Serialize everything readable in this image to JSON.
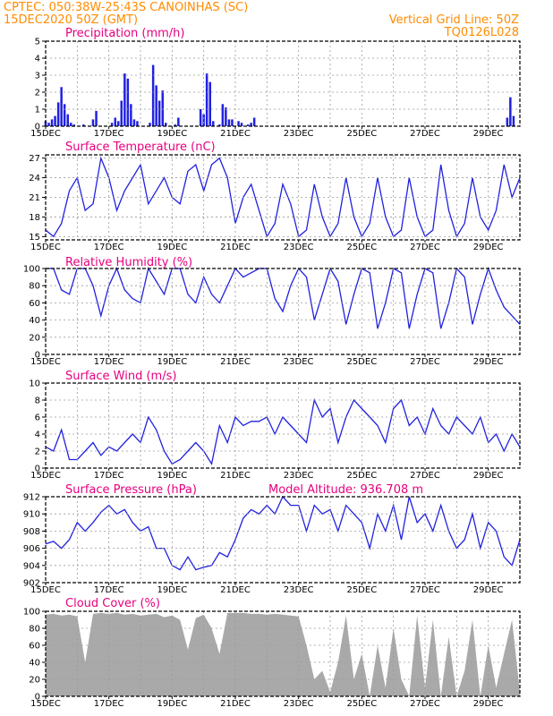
{
  "header": {
    "line1": "CPTEC:  050:38W-25:43S  CANOINHAS (SC)",
    "line2_left": "15DEC2020 50Z (GMT)",
    "line2_right": "Vertical Grid Line: 50Z",
    "code": "TQ0126L028"
  },
  "colors": {
    "series": "#2121e0",
    "cloud": "#a9a9a9",
    "title": "#e6007e",
    "header": "#ff8c00"
  },
  "chart_data": [
    {
      "type": "bar",
      "title": "Precipitation (mm/h)",
      "ylim": [
        0,
        5
      ],
      "yticks": [
        0,
        1,
        2,
        3,
        4,
        5
      ],
      "xticks": [
        "15DEC",
        "17DEC",
        "19DEC",
        "21DEC",
        "23DEC",
        "25DEC",
        "27DEC",
        "29DEC"
      ],
      "xlim_days": [
        15,
        30
      ],
      "series": [
        {
          "x": [
            15.0,
            15.1,
            15.2,
            15.3,
            15.4,
            15.5,
            15.6,
            15.7,
            15.8,
            15.9,
            16.0,
            16.1,
            16.2,
            16.3,
            16.4,
            16.5,
            16.6,
            16.7,
            16.8,
            16.9,
            17.0,
            17.1,
            17.2,
            17.3,
            17.4,
            17.5,
            17.6,
            17.7,
            17.8,
            17.9,
            18.0,
            18.1,
            18.2,
            18.3,
            18.4,
            18.5,
            18.6,
            18.7,
            18.8,
            18.9,
            19.0,
            19.1,
            19.2,
            19.3,
            19.4,
            19.5,
            19.6,
            19.7,
            19.8,
            19.9,
            20.0,
            20.1,
            20.2,
            20.3,
            20.4,
            20.5,
            20.6,
            20.7,
            20.8,
            20.9,
            21.0,
            21.1,
            21.2,
            21.3,
            21.4,
            21.5,
            21.6,
            21.7,
            21.8,
            21.9,
            22.0,
            29.6,
            29.7,
            29.8
          ],
          "values": [
            0.3,
            0.2,
            0.4,
            0.6,
            1.4,
            2.3,
            1.3,
            0.7,
            0.2,
            0.1,
            0.0,
            0.0,
            0.1,
            0.0,
            0.0,
            0.4,
            0.9,
            0.0,
            0.0,
            0.0,
            0.0,
            0.2,
            0.5,
            0.3,
            1.5,
            3.1,
            2.8,
            1.3,
            0.4,
            0.3,
            0.0,
            0.0,
            0.0,
            0.2,
            3.6,
            2.4,
            1.5,
            2.1,
            0.2,
            0.0,
            0.0,
            0.1,
            0.5,
            0.0,
            0.0,
            0.0,
            0.0,
            0.0,
            0.0,
            1.0,
            0.7,
            3.1,
            2.6,
            0.3,
            0.0,
            0.1,
            1.3,
            1.1,
            0.4,
            0.4,
            0.0,
            0.3,
            0.2,
            0.0,
            0.1,
            0.2,
            0.5,
            0.0,
            0.0,
            0.0,
            0.0,
            0.5,
            1.7,
            0.6
          ]
        }
      ]
    },
    {
      "type": "line",
      "title": "Surface Temperature (nC)",
      "ylim": [
        14.5,
        27.5
      ],
      "yticks": [
        15,
        18,
        21,
        24,
        27
      ],
      "xticks": [
        "15DEC",
        "17DEC",
        "19DEC",
        "21DEC",
        "23DEC",
        "25DEC",
        "27DEC",
        "29DEC"
      ],
      "xlim_days": [
        15,
        30
      ],
      "series": [
        {
          "x": [
            15.0,
            15.25,
            15.5,
            15.75,
            16.0,
            16.25,
            16.5,
            16.75,
            17.0,
            17.25,
            17.5,
            17.75,
            18.0,
            18.25,
            18.5,
            18.75,
            19.0,
            19.25,
            19.5,
            19.75,
            20.0,
            20.25,
            20.5,
            20.75,
            21.0,
            21.25,
            21.5,
            21.75,
            22.0,
            22.25,
            22.5,
            22.75,
            23.0,
            23.25,
            23.5,
            23.75,
            24.0,
            24.25,
            24.5,
            24.75,
            25.0,
            25.25,
            25.5,
            25.75,
            26.0,
            26.25,
            26.5,
            26.75,
            27.0,
            27.25,
            27.5,
            27.75,
            28.0,
            28.25,
            28.5,
            28.75,
            29.0,
            29.25,
            29.5,
            29.75,
            30.0
          ],
          "values": [
            16,
            15,
            17,
            22,
            24,
            19,
            20,
            27,
            24,
            19,
            22,
            24,
            26,
            20,
            22,
            24,
            21,
            20,
            25,
            26,
            22,
            26,
            27,
            24,
            17,
            21,
            23,
            19,
            15,
            17,
            23,
            20,
            15,
            16,
            23,
            18,
            15,
            17,
            24,
            18,
            15,
            17,
            24,
            18,
            15,
            16,
            24,
            18,
            15,
            16,
            26,
            19,
            15,
            17,
            24,
            18,
            16,
            19,
            26,
            21,
            24
          ]
        }
      ]
    },
    {
      "type": "line",
      "title": "Relative Humidity (%)",
      "ylim": [
        0,
        100
      ],
      "yticks": [
        0,
        20,
        40,
        60,
        80,
        100
      ],
      "xticks": [
        "15DEC",
        "17DEC",
        "19DEC",
        "21DEC",
        "23DEC",
        "25DEC",
        "27DEC",
        "29DEC"
      ],
      "xlim_days": [
        15,
        30
      ],
      "series": [
        {
          "x": [
            15.0,
            15.25,
            15.5,
            15.75,
            16.0,
            16.25,
            16.5,
            16.75,
            17.0,
            17.25,
            17.5,
            17.75,
            18.0,
            18.25,
            18.5,
            18.75,
            19.0,
            19.25,
            19.5,
            19.75,
            20.0,
            20.25,
            20.5,
            20.75,
            21.0,
            21.25,
            21.5,
            21.75,
            22.0,
            22.25,
            22.5,
            22.75,
            23.0,
            23.25,
            23.5,
            23.75,
            24.0,
            24.25,
            24.5,
            24.75,
            25.0,
            25.25,
            25.5,
            25.75,
            26.0,
            26.25,
            26.5,
            26.75,
            27.0,
            27.25,
            27.5,
            27.75,
            28.0,
            28.25,
            28.5,
            28.75,
            29.0,
            29.25,
            29.5,
            29.75,
            30.0
          ],
          "values": [
            100,
            100,
            75,
            70,
            100,
            100,
            80,
            45,
            80,
            100,
            75,
            65,
            60,
            100,
            85,
            70,
            100,
            100,
            70,
            60,
            90,
            70,
            60,
            80,
            100,
            90,
            95,
            100,
            100,
            65,
            50,
            80,
            100,
            90,
            40,
            70,
            100,
            85,
            35,
            70,
            100,
            95,
            30,
            60,
            100,
            95,
            30,
            70,
            100,
            95,
            30,
            60,
            100,
            90,
            35,
            70,
            100,
            75,
            55,
            45,
            35
          ]
        }
      ]
    },
    {
      "type": "line",
      "title": "Surface Wind (m/s)",
      "ylim": [
        0,
        10
      ],
      "yticks": [
        0,
        2,
        4,
        6,
        8,
        10
      ],
      "xticks": [
        "15DEC",
        "17DEC",
        "19DEC",
        "21DEC",
        "23DEC",
        "25DEC",
        "27DEC",
        "29DEC"
      ],
      "xlim_days": [
        15,
        30
      ],
      "series": [
        {
          "x": [
            15.0,
            15.25,
            15.5,
            15.75,
            16.0,
            16.25,
            16.5,
            16.75,
            17.0,
            17.25,
            17.5,
            17.75,
            18.0,
            18.25,
            18.5,
            18.75,
            19.0,
            19.25,
            19.5,
            19.75,
            20.0,
            20.25,
            20.5,
            20.75,
            21.0,
            21.25,
            21.5,
            21.75,
            22.0,
            22.25,
            22.5,
            22.75,
            23.0,
            23.25,
            23.5,
            23.75,
            24.0,
            24.25,
            24.5,
            24.75,
            25.0,
            25.25,
            25.5,
            25.75,
            26.0,
            26.25,
            26.5,
            26.75,
            27.0,
            27.25,
            27.5,
            27.75,
            28.0,
            28.25,
            28.5,
            28.75,
            29.0,
            29.25,
            29.5,
            29.75,
            30.0
          ],
          "values": [
            2.5,
            2,
            4.5,
            1,
            1,
            2,
            3,
            1.5,
            2.5,
            2,
            3,
            4,
            3,
            6,
            4.5,
            2,
            0.5,
            1,
            2,
            3,
            2,
            0.5,
            5,
            3,
            6,
            5,
            5.5,
            5.5,
            6,
            4,
            6,
            5,
            4,
            3,
            8,
            6,
            7,
            3,
            6,
            8,
            7,
            6,
            5,
            3,
            7,
            8,
            5,
            6,
            4,
            7,
            5,
            4,
            6,
            5,
            4,
            6,
            3,
            4,
            2,
            4,
            2.5
          ]
        }
      ]
    },
    {
      "type": "line",
      "title": "Surface Pressure (hPa)",
      "annotation": "Model Altitude: 936.708  m",
      "ylim": [
        902,
        912
      ],
      "yticks": [
        902,
        904,
        906,
        908,
        910,
        912
      ],
      "xticks": [
        "15DEC",
        "17DEC",
        "19DEC",
        "21DEC",
        "23DEC",
        "25DEC",
        "27DEC",
        "29DEC"
      ],
      "xlim_days": [
        15,
        30
      ],
      "series": [
        {
          "x": [
            15.0,
            15.25,
            15.5,
            15.75,
            16.0,
            16.25,
            16.5,
            16.75,
            17.0,
            17.25,
            17.5,
            17.75,
            18.0,
            18.25,
            18.5,
            18.75,
            19.0,
            19.25,
            19.5,
            19.75,
            20.0,
            20.25,
            20.5,
            20.75,
            21.0,
            21.25,
            21.5,
            21.75,
            22.0,
            22.25,
            22.5,
            22.75,
            23.0,
            23.25,
            23.5,
            23.75,
            24.0,
            24.25,
            24.5,
            24.75,
            25.0,
            25.25,
            25.5,
            25.75,
            26.0,
            26.25,
            26.5,
            26.75,
            27.0,
            27.25,
            27.5,
            27.75,
            28.0,
            28.25,
            28.5,
            28.75,
            29.0,
            29.25,
            29.5,
            29.75,
            30.0
          ],
          "values": [
            906.5,
            906.8,
            906,
            907,
            909,
            908,
            909,
            910.2,
            911,
            910,
            910.5,
            909,
            908,
            908.5,
            906,
            906,
            904,
            903.5,
            905,
            903.5,
            903.8,
            904,
            905.5,
            905,
            907,
            909.5,
            910.5,
            910,
            911,
            910,
            912,
            911,
            911,
            908,
            911,
            910,
            910.5,
            908,
            911,
            910,
            909,
            906,
            910,
            908,
            911,
            907,
            912,
            909,
            910,
            908,
            911,
            908,
            906,
            907,
            910,
            906,
            909,
            908,
            905,
            904,
            907
          ]
        }
      ]
    },
    {
      "type": "area",
      "title": "Cloud Cover (%)",
      "ylim": [
        0,
        100
      ],
      "yticks": [
        0,
        20,
        40,
        60,
        80,
        100
      ],
      "xticks": [
        "15DEC",
        "17DEC",
        "19DEC",
        "21DEC",
        "23DEC",
        "25DEC",
        "27DEC",
        "29DEC"
      ],
      "xlim_days": [
        15,
        30
      ],
      "series": [
        {
          "x": [
            15.0,
            15.25,
            15.5,
            15.75,
            16.0,
            16.25,
            16.5,
            16.75,
            17.0,
            17.25,
            17.5,
            17.75,
            18.0,
            18.25,
            18.5,
            18.75,
            19.0,
            19.25,
            19.5,
            19.75,
            20.0,
            20.25,
            20.5,
            20.75,
            21.0,
            21.25,
            21.5,
            21.75,
            22.0,
            22.25,
            22.5,
            22.75,
            23.0,
            23.25,
            23.5,
            23.75,
            24.0,
            24.25,
            24.5,
            24.75,
            25.0,
            25.25,
            25.5,
            25.75,
            26.0,
            26.25,
            26.5,
            26.75,
            27.0,
            27.25,
            27.5,
            27.75,
            28.0,
            28.25,
            28.5,
            28.75,
            29.0,
            29.25,
            29.5,
            29.75,
            30.0
          ],
          "values": [
            96,
            97,
            95,
            96,
            94,
            40,
            97,
            98,
            97,
            98,
            96,
            97,
            95,
            96,
            97,
            93,
            95,
            90,
            55,
            92,
            96,
            80,
            50,
            98,
            98,
            98,
            97,
            97,
            96,
            97,
            96,
            95,
            94,
            60,
            20,
            30,
            5,
            40,
            95,
            20,
            50,
            0,
            60,
            10,
            80,
            20,
            0,
            95,
            10,
            90,
            0,
            70,
            0,
            30,
            90,
            0,
            60,
            10,
            50,
            90,
            5
          ]
        }
      ]
    }
  ]
}
